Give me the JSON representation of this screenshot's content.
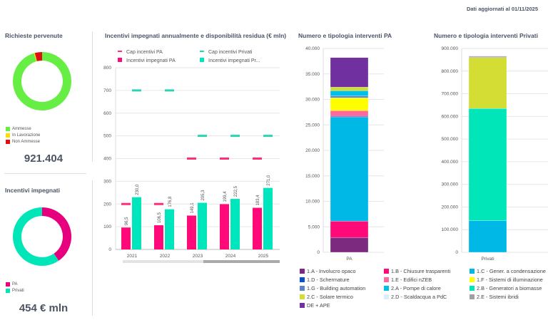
{
  "header": {
    "updated": "Dati aggiornati al 01/11/2025"
  },
  "requests": {
    "title": "Richieste pervenute",
    "total": "921.404",
    "legend": [
      {
        "label": "Ammesse",
        "color": "#66ee44",
        "share": 95.5
      },
      {
        "label": "In Lavorazione",
        "color": "#ffdd00",
        "share": 0.5
      },
      {
        "label": "Non Ammesse",
        "color": "#dd1111",
        "share": 4.0
      }
    ]
  },
  "incentives": {
    "title": "Incentivi impegnati",
    "total": "454 € mln",
    "legend": [
      {
        "label": "PA",
        "color": "#e6007e",
        "share": 40.4
      },
      {
        "label": "Privati",
        "color": "#00e6b8",
        "share": 59.6
      }
    ]
  },
  "chart_data": [
    {
      "type": "bar",
      "title": "Incentivi impegnati annualmente e disponibilità residua (€ mln)",
      "categories": [
        "2021",
        "2022",
        "2023",
        "2024",
        "2025"
      ],
      "ylim": [
        0,
        800
      ],
      "yticks": [
        0,
        100,
        200,
        300,
        400,
        500,
        600,
        700,
        800
      ],
      "grid": true,
      "legend_placement": "top",
      "series": [
        {
          "name": "Cap incentivi PA",
          "kind": "marker",
          "color": "#ff2d7a",
          "values": [
            200,
            200,
            400,
            400,
            400
          ]
        },
        {
          "name": "Cap incentivi Privati",
          "kind": "marker",
          "color": "#2ad6b0",
          "values": [
            700,
            700,
            500,
            500,
            500
          ]
        },
        {
          "name": "Incentivi impegnati PA",
          "kind": "bar",
          "color": "#ff0a78",
          "values": [
            96.5,
            106.5,
            149.1,
            199.4,
            183.4
          ],
          "labels": [
            "96,5",
            "106,5",
            "149,1",
            "199,4",
            "183,4"
          ]
        },
        {
          "name": "Incentivi impegnati Pr...",
          "kind": "bar",
          "color": "#00e6bc",
          "values": [
            230.0,
            176.8,
            205.3,
            222.5,
            271.0
          ],
          "labels": [
            "230,0",
            "176,8",
            "205,3",
            "222,5",
            "271,0"
          ]
        }
      ]
    },
    {
      "type": "bar",
      "stacked": true,
      "title": "Numero e tipologia interventi PA",
      "categories": [
        "PA"
      ],
      "ylim": [
        0,
        40000
      ],
      "yticks": [
        "0",
        "5.000",
        "10.000",
        "15.000",
        "20.000",
        "25.000",
        "30.000",
        "35.000",
        "40.000"
      ],
      "series": [
        {
          "name": "1.A - Involucro opaco",
          "values": [
            2900
          ]
        },
        {
          "name": "1.B - Chiusure trasparenti",
          "values": [
            3200
          ]
        },
        {
          "name": "1.C - Gener. a condensazione",
          "values": [
            20400
          ]
        },
        {
          "name": "1.D - Schermature",
          "values": [
            200
          ]
        },
        {
          "name": "1.E - Edifici nZEB",
          "values": [
            1100
          ]
        },
        {
          "name": "1.F - Sistemi di illuminazione",
          "values": [
            2500
          ]
        },
        {
          "name": "1.G - Building automation",
          "values": [
            400
          ]
        },
        {
          "name": "2.A - Pompe di calore",
          "values": [
            1000
          ]
        },
        {
          "name": "2.C - Solare termico",
          "values": [
            700
          ]
        },
        {
          "name": "DE + APE",
          "values": [
            5800
          ]
        }
      ]
    },
    {
      "type": "bar",
      "stacked": true,
      "title": "Numero e tipologia interventi Privati",
      "categories": [
        "Privati"
      ],
      "ylim": [
        0,
        900000
      ],
      "yticks": [
        "0",
        "100.000",
        "200.000",
        "300.000",
        "400.000",
        "500.000",
        "600.000",
        "700.000",
        "800.000",
        "900.000"
      ],
      "series": [
        {
          "name": "1.C - Gener. a condensazione",
          "values": [
            140000
          ]
        },
        {
          "name": "2.B - Generatori a biomasse",
          "values": [
            495000
          ]
        },
        {
          "name": "2.C - Solare termico",
          "values": [
            225000
          ]
        },
        {
          "name": "2.E - Sistemi ibridi",
          "values": [
            4000
          ]
        },
        {
          "name": "DE + APE",
          "values": [
            2000
          ]
        }
      ]
    }
  ],
  "types_legend": [
    {
      "label": "1.A - Involucro opaco",
      "color": "#7b2a7f"
    },
    {
      "label": "1.B - Chiusure trasparenti",
      "color": "#ff0a78"
    },
    {
      "label": "1.C - Gener. a condensazione",
      "color": "#00b8e6"
    },
    {
      "label": "1.D - Schermature",
      "color": "#0a52c8"
    },
    {
      "label": "1.E - Edifici nZEB",
      "color": "#ff6a9a"
    },
    {
      "label": "1.F - Sistemi di illuminazione",
      "color": "#ffff00"
    },
    {
      "label": "1.G - Building automation",
      "color": "#5b86c4"
    },
    {
      "label": "2.A - Pompe di calore",
      "color": "#00c0e8"
    },
    {
      "label": "2.B - Generatori a biomasse",
      "color": "#00e6b8"
    },
    {
      "label": "2.C - Solare termico",
      "color": "#d4dd33"
    },
    {
      "label": "2.D - Scaldacqua a PdC",
      "color": "#d8eef8"
    },
    {
      "label": "2.E - Sistemi ibridi",
      "color": "#a0a0a0"
    },
    {
      "label": "DE + APE",
      "color": "#7030a0"
    }
  ]
}
